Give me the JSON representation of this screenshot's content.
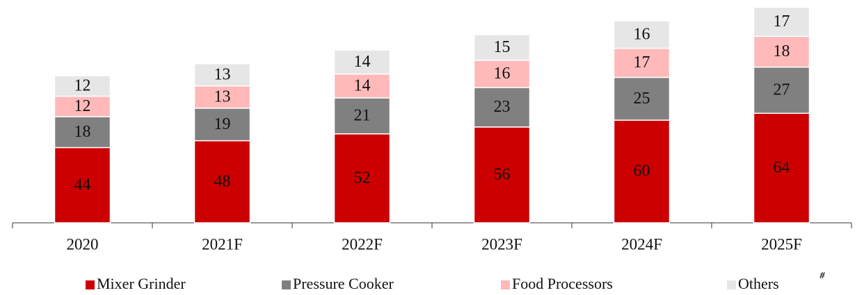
{
  "chart_data": {
    "type": "stacked_bar",
    "categories": [
      "2020",
      "2021F",
      "2022F",
      "2023F",
      "2024F",
      "2025F"
    ],
    "series": [
      {
        "name": "Mixer Grinder",
        "color": "#cc0000",
        "values": [
          44,
          48,
          52,
          56,
          60,
          64
        ]
      },
      {
        "name": "Pressure Cooker",
        "color": "#808080",
        "values": [
          18,
          19,
          21,
          23,
          25,
          27
        ]
      },
      {
        "name": "Food Processors",
        "color": "#ffb9b9",
        "values": [
          12,
          13,
          14,
          16,
          17,
          18
        ]
      },
      {
        "name": "Others",
        "color": "#e6e6e6",
        "values": [
          12,
          13,
          14,
          15,
          16,
          17
        ]
      }
    ],
    "ylim": [
      0,
      128
    ],
    "legend": "bottom",
    "footnote": "#"
  }
}
